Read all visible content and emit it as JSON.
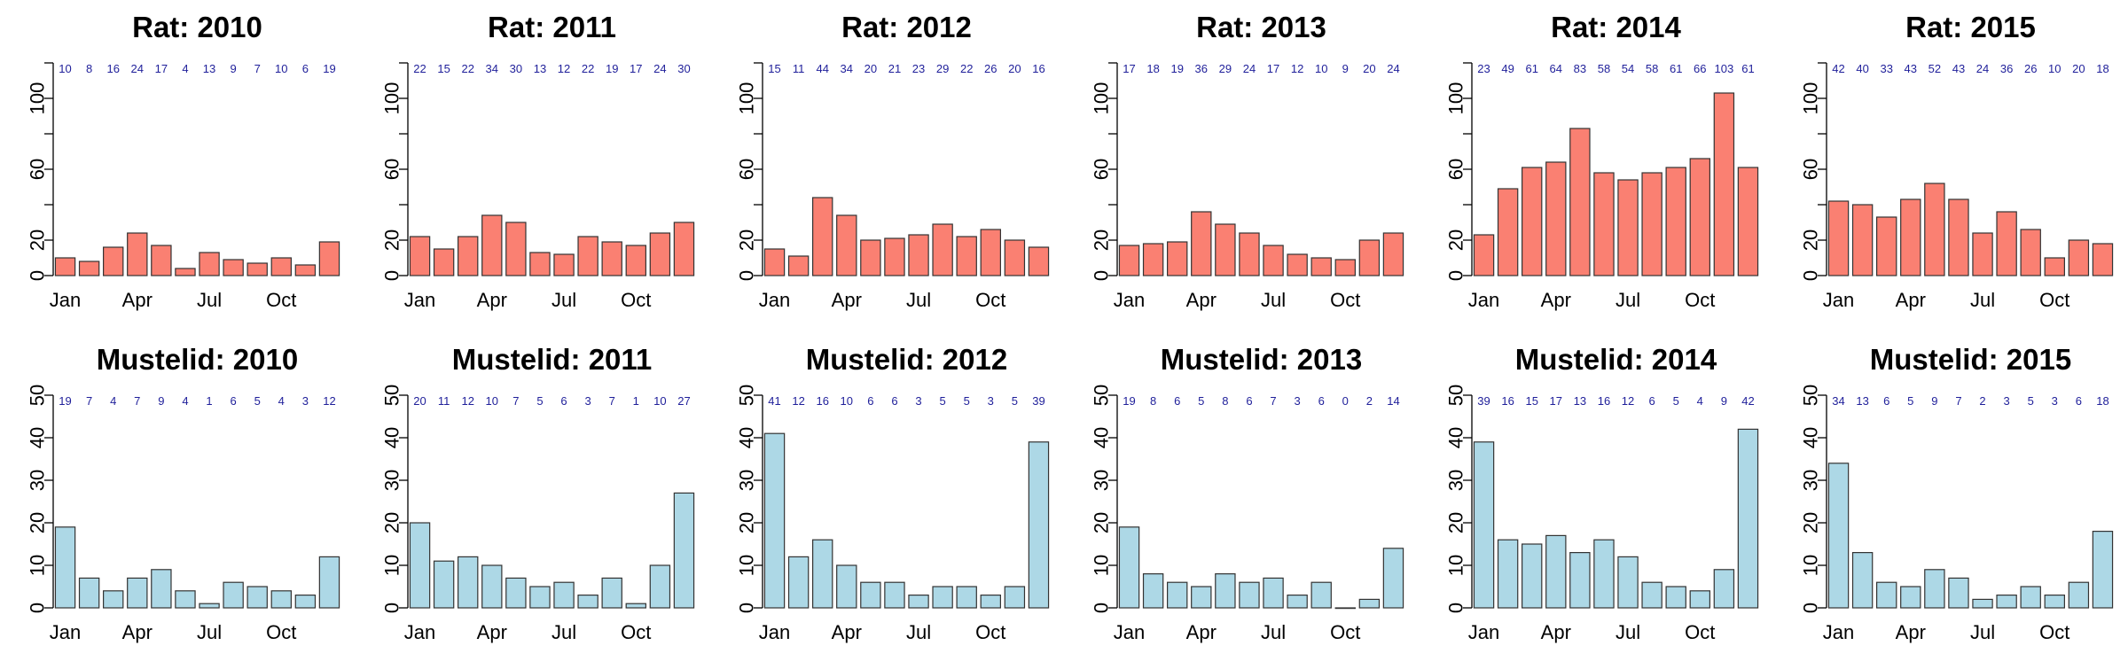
{
  "colors": {
    "rat": "#fa8072",
    "mustelid": "#add8e6",
    "count_label": "#1f1f9a"
  },
  "chart_data": [
    {
      "type": "bar",
      "title": "Rat: 2010",
      "species": "rat",
      "x_tick_labels": [
        "Jan",
        "Apr",
        "Jul",
        "Oct"
      ],
      "x_tick_months": [
        1,
        4,
        7,
        10
      ],
      "categories": [
        1,
        2,
        3,
        4,
        5,
        6,
        7,
        8,
        9,
        10,
        11,
        12
      ],
      "values": [
        10,
        8,
        16,
        24,
        17,
        4,
        13,
        9,
        7,
        10,
        6,
        19
      ],
      "value_labels": [
        "10",
        "8",
        "16",
        "24",
        "17",
        "4",
        "13",
        "9",
        "7",
        "10",
        "6",
        "19"
      ],
      "ylim": [
        0,
        120
      ],
      "y_ticks": [
        "0",
        "20",
        "60",
        "100"
      ]
    },
    {
      "type": "bar",
      "title": "Rat: 2011",
      "species": "rat",
      "x_tick_labels": [
        "Jan",
        "Apr",
        "Jul",
        "Oct"
      ],
      "x_tick_months": [
        1,
        4,
        7,
        10
      ],
      "categories": [
        1,
        2,
        3,
        4,
        5,
        6,
        7,
        8,
        9,
        10,
        11,
        12
      ],
      "values": [
        22,
        15,
        22,
        34,
        30,
        13,
        12,
        22,
        19,
        17,
        24,
        30
      ],
      "value_labels": [
        "22",
        "15",
        "22",
        "34",
        "30",
        "13",
        "12",
        "22",
        "19",
        "17",
        "24",
        "30"
      ],
      "ylim": [
        0,
        120
      ],
      "y_ticks": [
        "0",
        "20",
        "60",
        "100"
      ]
    },
    {
      "type": "bar",
      "title": "Rat: 2012",
      "species": "rat",
      "x_tick_labels": [
        "Jan",
        "Apr",
        "Jul",
        "Oct"
      ],
      "x_tick_months": [
        1,
        4,
        7,
        10
      ],
      "categories": [
        1,
        2,
        3,
        4,
        5,
        6,
        7,
        8,
        9,
        10,
        11,
        12
      ],
      "values": [
        15,
        11,
        44,
        34,
        20,
        21,
        23,
        29,
        22,
        26,
        20,
        16
      ],
      "value_labels": [
        "15",
        "11",
        "44",
        "34",
        "20",
        "21",
        "23",
        "29",
        "22",
        "26",
        "20",
        "16"
      ],
      "ylim": [
        0,
        120
      ],
      "y_ticks": [
        "0",
        "20",
        "60",
        "100"
      ]
    },
    {
      "type": "bar",
      "title": "Rat: 2013",
      "species": "rat",
      "x_tick_labels": [
        "Jan",
        "Apr",
        "Jul",
        "Oct"
      ],
      "x_tick_months": [
        1,
        4,
        7,
        10
      ],
      "categories": [
        1,
        2,
        3,
        4,
        5,
        6,
        7,
        8,
        9,
        10,
        11,
        12
      ],
      "values": [
        17,
        18,
        19,
        36,
        29,
        24,
        17,
        12,
        10,
        9,
        20,
        24
      ],
      "value_labels": [
        "17",
        "18",
        "19",
        "36",
        "29",
        "24",
        "17",
        "12",
        "10",
        "9",
        "20",
        "24"
      ],
      "ylim": [
        0,
        120
      ],
      "y_ticks": [
        "0",
        "20",
        "60",
        "100"
      ]
    },
    {
      "type": "bar",
      "title": "Rat: 2014",
      "species": "rat",
      "x_tick_labels": [
        "Jan",
        "Apr",
        "Jul",
        "Oct"
      ],
      "x_tick_months": [
        1,
        4,
        7,
        10
      ],
      "categories": [
        1,
        2,
        3,
        4,
        5,
        6,
        7,
        8,
        9,
        10,
        11,
        12
      ],
      "values": [
        23,
        49,
        61,
        64,
        83,
        58,
        54,
        58,
        61,
        66,
        103,
        61
      ],
      "value_labels": [
        "23",
        "49",
        "61",
        "64",
        "83",
        "58",
        "54",
        "58",
        "61",
        "66",
        "103",
        "61"
      ],
      "ylim": [
        0,
        120
      ],
      "y_ticks": [
        "0",
        "20",
        "60",
        "100"
      ]
    },
    {
      "type": "bar",
      "title": "Rat: 2015",
      "species": "rat",
      "x_tick_labels": [
        "Jan",
        "Apr",
        "Jul",
        "Oct"
      ],
      "x_tick_months": [
        1,
        4,
        7,
        10
      ],
      "categories": [
        1,
        2,
        3,
        4,
        5,
        6,
        7,
        8,
        9,
        10,
        11,
        12
      ],
      "values": [
        42,
        40,
        33,
        43,
        52,
        43,
        24,
        36,
        26,
        10,
        20,
        18
      ],
      "value_labels": [
        "42",
        "40",
        "33",
        "43",
        "52",
        "43",
        "24",
        "36",
        "26",
        "10",
        "20",
        "18"
      ],
      "ylim": [
        0,
        120
      ],
      "y_ticks": [
        "0",
        "20",
        "60",
        "100"
      ]
    },
    {
      "type": "bar",
      "title": "Mustelid: 2010",
      "species": "mustelid",
      "x_tick_labels": [
        "Jan",
        "Apr",
        "Jul",
        "Oct"
      ],
      "x_tick_months": [
        1,
        4,
        7,
        10
      ],
      "categories": [
        1,
        2,
        3,
        4,
        5,
        6,
        7,
        8,
        9,
        10,
        11,
        12
      ],
      "values": [
        19,
        7,
        4,
        7,
        9,
        4,
        1,
        6,
        5,
        4,
        3,
        12
      ],
      "value_labels": [
        "19",
        "7",
        "4",
        "7",
        "9",
        "4",
        "1",
        "6",
        "5",
        "4",
        "3",
        "12"
      ],
      "ylim": [
        0,
        50
      ],
      "y_ticks": [
        "0",
        "10",
        "20",
        "30",
        "40",
        "50"
      ]
    },
    {
      "type": "bar",
      "title": "Mustelid: 2011",
      "species": "mustelid",
      "x_tick_labels": [
        "Jan",
        "Apr",
        "Jul",
        "Oct"
      ],
      "x_tick_months": [
        1,
        4,
        7,
        10
      ],
      "categories": [
        1,
        2,
        3,
        4,
        5,
        6,
        7,
        8,
        9,
        10,
        11,
        12
      ],
      "values": [
        20,
        11,
        12,
        10,
        7,
        5,
        6,
        3,
        7,
        1,
        10,
        27
      ],
      "value_labels": [
        "20",
        "11",
        "12",
        "10",
        "7",
        "5",
        "6",
        "3",
        "7",
        "1",
        "10",
        "27"
      ],
      "ylim": [
        0,
        50
      ],
      "y_ticks": [
        "0",
        "10",
        "20",
        "30",
        "40",
        "50"
      ]
    },
    {
      "type": "bar",
      "title": "Mustelid: 2012",
      "species": "mustelid",
      "x_tick_labels": [
        "Jan",
        "Apr",
        "Jul",
        "Oct"
      ],
      "x_tick_months": [
        1,
        4,
        7,
        10
      ],
      "categories": [
        1,
        2,
        3,
        4,
        5,
        6,
        7,
        8,
        9,
        10,
        11,
        12
      ],
      "values": [
        41,
        12,
        16,
        10,
        6,
        6,
        3,
        5,
        5,
        3,
        5,
        39
      ],
      "value_labels": [
        "41",
        "12",
        "16",
        "10",
        "6",
        "6",
        "3",
        "5",
        "5",
        "3",
        "5",
        "39"
      ],
      "ylim": [
        0,
        50
      ],
      "y_ticks": [
        "0",
        "10",
        "20",
        "30",
        "40",
        "50"
      ]
    },
    {
      "type": "bar",
      "title": "Mustelid: 2013",
      "species": "mustelid",
      "x_tick_labels": [
        "Jan",
        "Apr",
        "Jul",
        "Oct"
      ],
      "x_tick_months": [
        1,
        4,
        7,
        10
      ],
      "categories": [
        1,
        2,
        3,
        4,
        5,
        6,
        7,
        8,
        9,
        10,
        11,
        12
      ],
      "values": [
        19,
        8,
        6,
        5,
        8,
        6,
        7,
        3,
        6,
        0,
        2,
        14
      ],
      "value_labels": [
        "19",
        "8",
        "6",
        "5",
        "8",
        "6",
        "7",
        "3",
        "6",
        "0",
        "2",
        "14"
      ],
      "ylim": [
        0,
        50
      ],
      "y_ticks": [
        "0",
        "10",
        "20",
        "30",
        "40",
        "50"
      ]
    },
    {
      "type": "bar",
      "title": "Mustelid: 2014",
      "species": "mustelid",
      "x_tick_labels": [
        "Jan",
        "Apr",
        "Jul",
        "Oct"
      ],
      "x_tick_months": [
        1,
        4,
        7,
        10
      ],
      "categories": [
        1,
        2,
        3,
        4,
        5,
        6,
        7,
        8,
        9,
        10,
        11,
        12
      ],
      "values": [
        39,
        16,
        15,
        17,
        13,
        16,
        12,
        6,
        5,
        4,
        9,
        42
      ],
      "value_labels": [
        "39",
        "16",
        "15",
        "17",
        "13",
        "16",
        "12",
        "6",
        "5",
        "4",
        "9",
        "42"
      ],
      "ylim": [
        0,
        50
      ],
      "y_ticks": [
        "0",
        "10",
        "20",
        "30",
        "40",
        "50"
      ]
    },
    {
      "type": "bar",
      "title": "Mustelid: 2015",
      "species": "mustelid",
      "x_tick_labels": [
        "Jan",
        "Apr",
        "Jul",
        "Oct"
      ],
      "x_tick_months": [
        1,
        4,
        7,
        10
      ],
      "categories": [
        1,
        2,
        3,
        4,
        5,
        6,
        7,
        8,
        9,
        10,
        11,
        12
      ],
      "values": [
        34,
        13,
        6,
        5,
        9,
        7,
        2,
        3,
        5,
        3,
        6,
        18
      ],
      "value_labels": [
        "34",
        "13",
        "6",
        "5",
        "9",
        "7",
        "2",
        "3",
        "5",
        "3",
        "6",
        "18"
      ],
      "ylim": [
        0,
        50
      ],
      "y_ticks": [
        "0",
        "10",
        "20",
        "30",
        "40",
        "50"
      ]
    }
  ]
}
